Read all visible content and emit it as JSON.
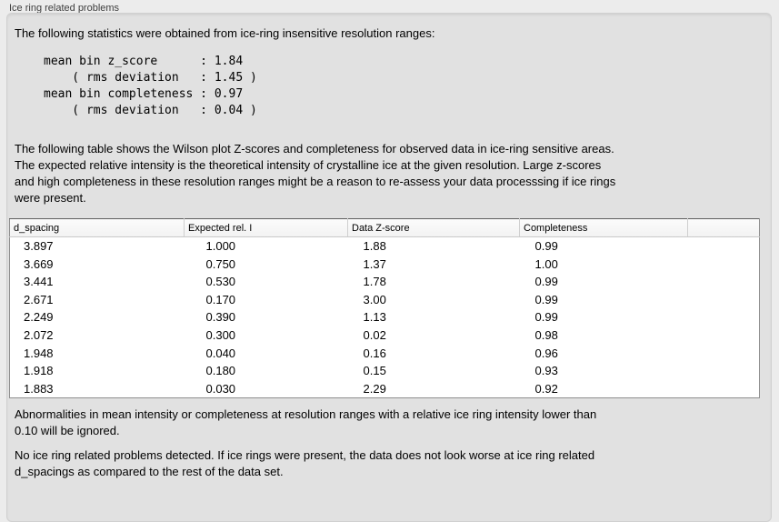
{
  "panel": {
    "title": "Ice ring related problems"
  },
  "stats": {
    "intro": "The following statistics were obtained from ice-ring insensitive resolution ranges:",
    "block": "mean bin z_score      : 1.84\n    ( rms deviation   : 1.45 )\nmean bin completeness : 0.97\n    ( rms deviation   : 0.04 )"
  },
  "table_intro": "The following table shows the Wilson plot Z-scores and completeness for observed data in ice-ring sensitive areas.\nThe expected relative intensity is the theoretical intensity of crystalline ice at the given resolution. Large z-scores\nand high completeness in these resolution ranges might be a reason to re-assess your data processsing if ice rings\nwere present.",
  "table": {
    "columns": [
      "d_spacing",
      "Expected rel. I",
      "Data Z-score",
      "Completeness",
      ""
    ],
    "rows": [
      [
        "3.897",
        "1.000",
        "1.88",
        "0.99"
      ],
      [
        "3.669",
        "0.750",
        "1.37",
        "1.00"
      ],
      [
        "3.441",
        "0.530",
        "1.78",
        "0.99"
      ],
      [
        "2.671",
        "0.170",
        "3.00",
        "0.99"
      ],
      [
        "2.249",
        "0.390",
        "1.13",
        "0.99"
      ],
      [
        "2.072",
        "0.300",
        "0.02",
        "0.98"
      ],
      [
        "1.948",
        "0.040",
        "0.16",
        "0.96"
      ],
      [
        "1.918",
        "0.180",
        "0.15",
        "0.93"
      ],
      [
        "1.883",
        "0.030",
        "2.29",
        "0.92"
      ]
    ]
  },
  "notes": {
    "ignored": "Abnormalities in mean intensity or completeness at resolution ranges with a relative ice ring intensity lower than\n0.10 will be ignored.",
    "conclusion": "No ice ring related problems detected. If ice rings were present, the data does not look worse at ice ring related\nd_spacings as compared to the rest of the data set."
  },
  "colors": {
    "window_bg": "#ececec",
    "groupbox_bg": "#e1e1e1",
    "table_bg": "#ffffff",
    "table_border": "#8f8f8f",
    "table_header_bg": "#f6f6f6"
  }
}
